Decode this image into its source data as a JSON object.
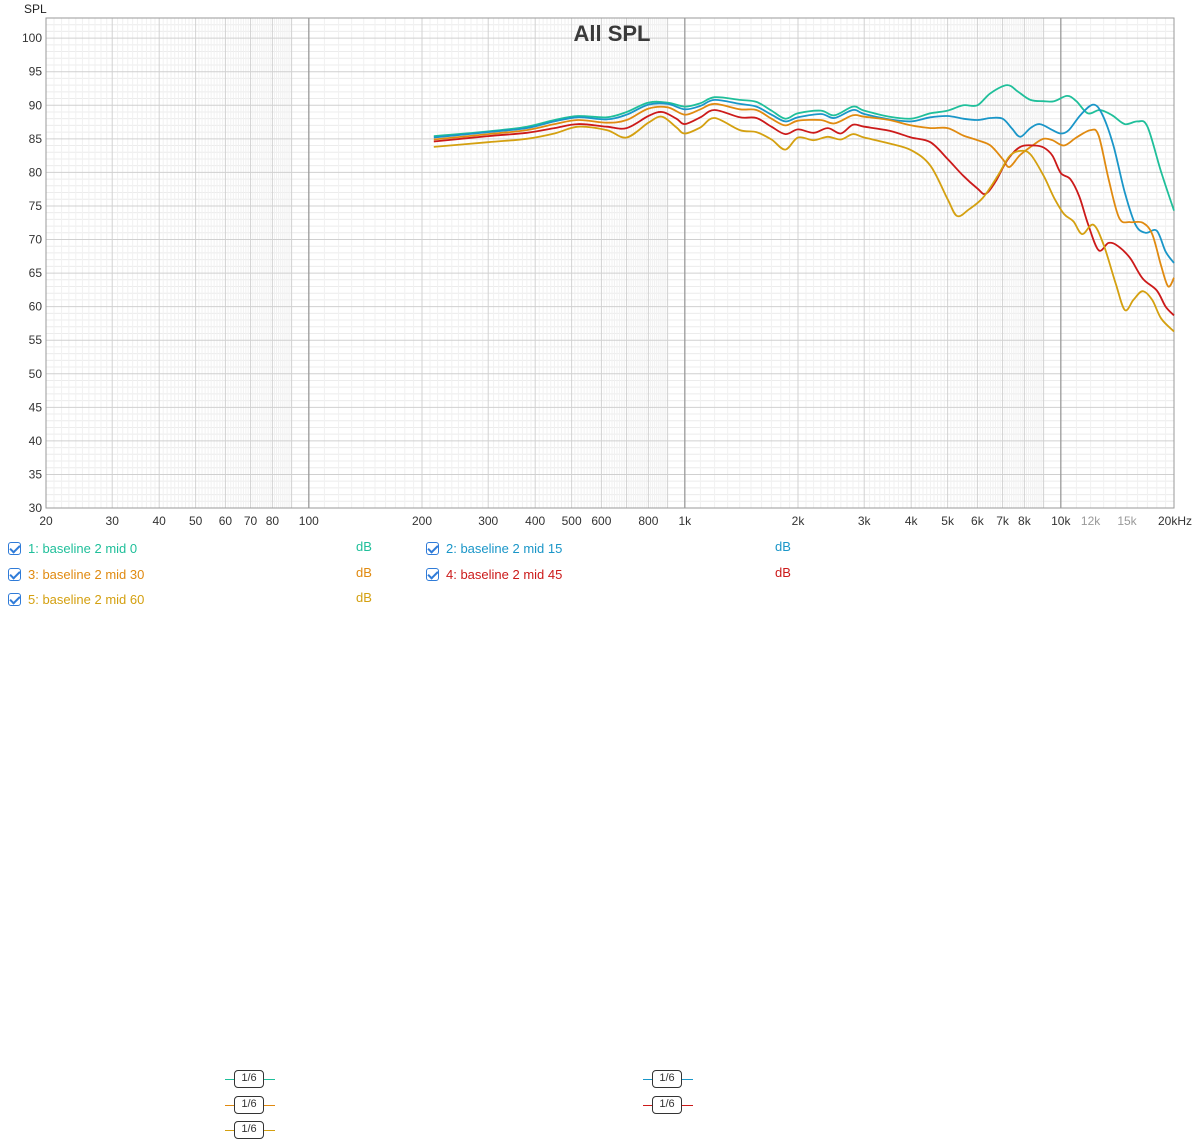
{
  "chart_data": {
    "type": "line",
    "title": "All SPL",
    "ylabel": "SPL",
    "xlabel": "",
    "x_scale": "log",
    "xlim": [
      20,
      20000
    ],
    "ylim": [
      30,
      103
    ],
    "grid": true,
    "y_ticks": [
      30,
      35,
      40,
      45,
      50,
      55,
      60,
      65,
      70,
      75,
      80,
      85,
      90,
      95,
      100
    ],
    "x_tick_labels": [
      {
        "v": 20,
        "t": "20"
      },
      {
        "v": 30,
        "t": "30"
      },
      {
        "v": 40,
        "t": "40"
      },
      {
        "v": 50,
        "t": "50"
      },
      {
        "v": 60,
        "t": "60"
      },
      {
        "v": 70,
        "t": "70"
      },
      {
        "v": 80,
        "t": "80"
      },
      {
        "v": 100,
        "t": "100"
      },
      {
        "v": 200,
        "t": "200"
      },
      {
        "v": 300,
        "t": "300"
      },
      {
        "v": 400,
        "t": "400"
      },
      {
        "v": 500,
        "t": "500"
      },
      {
        "v": 600,
        "t": "600"
      },
      {
        "v": 800,
        "t": "800"
      },
      {
        "v": 1000,
        "t": "1k"
      },
      {
        "v": 2000,
        "t": "2k"
      },
      {
        "v": 3000,
        "t": "3k"
      },
      {
        "v": 4000,
        "t": "4k"
      },
      {
        "v": 5000,
        "t": "5k"
      },
      {
        "v": 6000,
        "t": "6k"
      },
      {
        "v": 7000,
        "t": "7k"
      },
      {
        "v": 8000,
        "t": "8k"
      },
      {
        "v": 10000,
        "t": "10k"
      },
      {
        "v": 12000,
        "t": "12k",
        "muted": true
      },
      {
        "v": 15000,
        "t": "15k",
        "muted": true
      },
      {
        "v": 20000,
        "t": "20kHz"
      }
    ],
    "series": [
      {
        "name": "1: baseline 2 mid 0",
        "color": "#1fbf9a",
        "points": [
          [
            215,
            85.4
          ],
          [
            300,
            86.1
          ],
          [
            380,
            86.8
          ],
          [
            450,
            87.8
          ],
          [
            520,
            88.4
          ],
          [
            620,
            88.2
          ],
          [
            700,
            89.0
          ],
          [
            800,
            90.4
          ],
          [
            900,
            90.4
          ],
          [
            1000,
            89.8
          ],
          [
            1100,
            90.3
          ],
          [
            1200,
            91.2
          ],
          [
            1400,
            90.8
          ],
          [
            1550,
            90.5
          ],
          [
            1700,
            89.2
          ],
          [
            1850,
            88.0
          ],
          [
            2000,
            88.8
          ],
          [
            2300,
            89.2
          ],
          [
            2500,
            88.5
          ],
          [
            2800,
            89.8
          ],
          [
            3000,
            89.2
          ],
          [
            3500,
            88.3
          ],
          [
            4000,
            88.0
          ],
          [
            4500,
            88.8
          ],
          [
            5000,
            89.2
          ],
          [
            5500,
            90.0
          ],
          [
            6000,
            90.0
          ],
          [
            6500,
            91.8
          ],
          [
            7200,
            93.0
          ],
          [
            7700,
            92.0
          ],
          [
            8300,
            90.8
          ],
          [
            9000,
            90.6
          ],
          [
            9600,
            90.6
          ],
          [
            10400,
            91.4
          ],
          [
            11000,
            90.6
          ],
          [
            11800,
            88.8
          ],
          [
            12700,
            89.3
          ],
          [
            13700,
            88.5
          ],
          [
            14800,
            87.2
          ],
          [
            16000,
            87.6
          ],
          [
            17000,
            86.8
          ],
          [
            18500,
            80.0
          ],
          [
            20000,
            74.3
          ]
        ]
      },
      {
        "name": "2: baseline 2 mid 15",
        "color": "#1a96c8",
        "points": [
          [
            215,
            85.2
          ],
          [
            300,
            86.0
          ],
          [
            380,
            86.6
          ],
          [
            450,
            87.6
          ],
          [
            520,
            88.2
          ],
          [
            620,
            87.9
          ],
          [
            700,
            88.6
          ],
          [
            800,
            90.1
          ],
          [
            900,
            90.2
          ],
          [
            1000,
            89.4
          ],
          [
            1100,
            89.9
          ],
          [
            1200,
            90.8
          ],
          [
            1400,
            90.2
          ],
          [
            1550,
            89.8
          ],
          [
            1700,
            88.6
          ],
          [
            1850,
            87.6
          ],
          [
            2000,
            88.2
          ],
          [
            2300,
            88.7
          ],
          [
            2500,
            88.1
          ],
          [
            2800,
            89.3
          ],
          [
            3000,
            88.7
          ],
          [
            3500,
            87.9
          ],
          [
            4000,
            87.6
          ],
          [
            4500,
            88.2
          ],
          [
            5000,
            88.4
          ],
          [
            5500,
            88.0
          ],
          [
            6000,
            87.8
          ],
          [
            6500,
            88.1
          ],
          [
            7000,
            88.0
          ],
          [
            7400,
            86.6
          ],
          [
            7800,
            85.3
          ],
          [
            8300,
            86.6
          ],
          [
            8800,
            87.2
          ],
          [
            9500,
            86.3
          ],
          [
            10000,
            85.8
          ],
          [
            10500,
            86.3
          ],
          [
            11300,
            88.6
          ],
          [
            12200,
            90.1
          ],
          [
            12900,
            88.6
          ],
          [
            13800,
            84.0
          ],
          [
            14800,
            77.0
          ],
          [
            15800,
            72.2
          ],
          [
            16800,
            71.0
          ],
          [
            18000,
            71.3
          ],
          [
            19000,
            68.2
          ],
          [
            20000,
            66.5
          ]
        ]
      },
      {
        "name": "3: baseline 2 mid 30",
        "color": "#e08a10",
        "points": [
          [
            215,
            84.9
          ],
          [
            300,
            85.7
          ],
          [
            380,
            86.3
          ],
          [
            450,
            87.2
          ],
          [
            520,
            87.8
          ],
          [
            620,
            87.4
          ],
          [
            700,
            87.8
          ],
          [
            800,
            89.5
          ],
          [
            900,
            89.7
          ],
          [
            1000,
            88.6
          ],
          [
            1100,
            89.4
          ],
          [
            1200,
            90.2
          ],
          [
            1400,
            89.4
          ],
          [
            1550,
            89.3
          ],
          [
            1700,
            88.0
          ],
          [
            1850,
            87.0
          ],
          [
            2000,
            87.7
          ],
          [
            2300,
            87.8
          ],
          [
            2500,
            87.3
          ],
          [
            2800,
            88.5
          ],
          [
            3000,
            88.3
          ],
          [
            3500,
            87.8
          ],
          [
            4000,
            87.0
          ],
          [
            4500,
            86.6
          ],
          [
            5000,
            86.6
          ],
          [
            5500,
            85.5
          ],
          [
            6000,
            84.8
          ],
          [
            6500,
            84.0
          ],
          [
            7000,
            82.0
          ],
          [
            7300,
            80.8
          ],
          [
            7800,
            82.6
          ],
          [
            8500,
            84.2
          ],
          [
            9000,
            85.0
          ],
          [
            9500,
            84.8
          ],
          [
            10200,
            84.0
          ],
          [
            11000,
            85.2
          ],
          [
            12000,
            86.3
          ],
          [
            12600,
            85.5
          ],
          [
            13400,
            79.0
          ],
          [
            14300,
            73.2
          ],
          [
            15300,
            72.6
          ],
          [
            16500,
            72.5
          ],
          [
            17500,
            70.8
          ],
          [
            18500,
            66.0
          ],
          [
            19300,
            63.0
          ],
          [
            20000,
            64.3
          ]
        ]
      },
      {
        "name": "4: baseline 2 mid 45",
        "color": "#cc1a1a",
        "points": [
          [
            215,
            84.6
          ],
          [
            300,
            85.4
          ],
          [
            380,
            85.9
          ],
          [
            450,
            86.6
          ],
          [
            520,
            87.2
          ],
          [
            620,
            86.8
          ],
          [
            700,
            86.6
          ],
          [
            800,
            88.4
          ],
          [
            870,
            89.0
          ],
          [
            950,
            88.0
          ],
          [
            1000,
            87.2
          ],
          [
            1100,
            88.2
          ],
          [
            1200,
            89.3
          ],
          [
            1400,
            88.2
          ],
          [
            1550,
            88.1
          ],
          [
            1700,
            86.8
          ],
          [
            1850,
            85.7
          ],
          [
            2000,
            86.4
          ],
          [
            2200,
            85.9
          ],
          [
            2400,
            86.6
          ],
          [
            2600,
            85.8
          ],
          [
            2800,
            87.1
          ],
          [
            3000,
            86.8
          ],
          [
            3500,
            86.2
          ],
          [
            4000,
            85.2
          ],
          [
            4500,
            84.5
          ],
          [
            5000,
            82.0
          ],
          [
            5500,
            79.5
          ],
          [
            6000,
            77.6
          ],
          [
            6300,
            76.8
          ],
          [
            6700,
            78.6
          ],
          [
            7200,
            81.8
          ],
          [
            7800,
            83.8
          ],
          [
            8500,
            84.0
          ],
          [
            9000,
            83.7
          ],
          [
            9500,
            82.5
          ],
          [
            10000,
            79.9
          ],
          [
            10600,
            79.0
          ],
          [
            11200,
            76.4
          ],
          [
            11800,
            72.4
          ],
          [
            12600,
            68.4
          ],
          [
            13400,
            69.5
          ],
          [
            14200,
            69.0
          ],
          [
            15300,
            67.2
          ],
          [
            16500,
            64.2
          ],
          [
            18000,
            62.4
          ],
          [
            19000,
            60.0
          ],
          [
            20000,
            58.7
          ]
        ]
      },
      {
        "name": "5: baseline 2 mid 60",
        "color": "#d4a010",
        "points": [
          [
            215,
            83.8
          ],
          [
            300,
            84.5
          ],
          [
            380,
            85.0
          ],
          [
            450,
            85.8
          ],
          [
            520,
            86.8
          ],
          [
            620,
            86.3
          ],
          [
            700,
            85.2
          ],
          [
            800,
            87.4
          ],
          [
            870,
            88.3
          ],
          [
            950,
            86.7
          ],
          [
            1000,
            85.8
          ],
          [
            1100,
            86.7
          ],
          [
            1200,
            88.1
          ],
          [
            1400,
            86.3
          ],
          [
            1550,
            86.0
          ],
          [
            1700,
            84.9
          ],
          [
            1850,
            83.4
          ],
          [
            2000,
            85.2
          ],
          [
            2200,
            84.8
          ],
          [
            2400,
            85.3
          ],
          [
            2600,
            84.9
          ],
          [
            2800,
            85.7
          ],
          [
            3000,
            85.2
          ],
          [
            3500,
            84.3
          ],
          [
            4000,
            83.3
          ],
          [
            4500,
            81.0
          ],
          [
            5000,
            76.0
          ],
          [
            5300,
            73.5
          ],
          [
            5700,
            74.5
          ],
          [
            6200,
            76.2
          ],
          [
            6800,
            79.5
          ],
          [
            7300,
            82.4
          ],
          [
            7800,
            83.2
          ],
          [
            8300,
            82.7
          ],
          [
            9000,
            79.5
          ],
          [
            9600,
            76.2
          ],
          [
            10200,
            73.8
          ],
          [
            10800,
            72.7
          ],
          [
            11400,
            70.8
          ],
          [
            12200,
            72.2
          ],
          [
            13000,
            69.2
          ],
          [
            14000,
            63.4
          ],
          [
            14800,
            59.5
          ],
          [
            15600,
            61.0
          ],
          [
            16500,
            62.3
          ],
          [
            17500,
            61.0
          ],
          [
            18500,
            58.2
          ],
          [
            20000,
            56.3
          ]
        ]
      }
    ]
  },
  "legend": {
    "items": [
      {
        "label": "1: baseline 2 mid 0",
        "color": "#1fbf9a",
        "smoothing": "1/6",
        "unit": "dB"
      },
      {
        "label": "2: baseline 2 mid 15",
        "color": "#1a96c8",
        "smoothing": "1/6",
        "unit": "dB"
      },
      {
        "label": "3: baseline 2 mid 30",
        "color": "#e08a10",
        "smoothing": "1/6",
        "unit": "dB"
      },
      {
        "label": "4: baseline 2 mid 45",
        "color": "#cc1a1a",
        "smoothing": "1/6",
        "unit": "dB"
      },
      {
        "label": "5: baseline 2 mid 60",
        "color": "#d4a010",
        "smoothing": "1/6",
        "unit": "dB"
      }
    ]
  }
}
